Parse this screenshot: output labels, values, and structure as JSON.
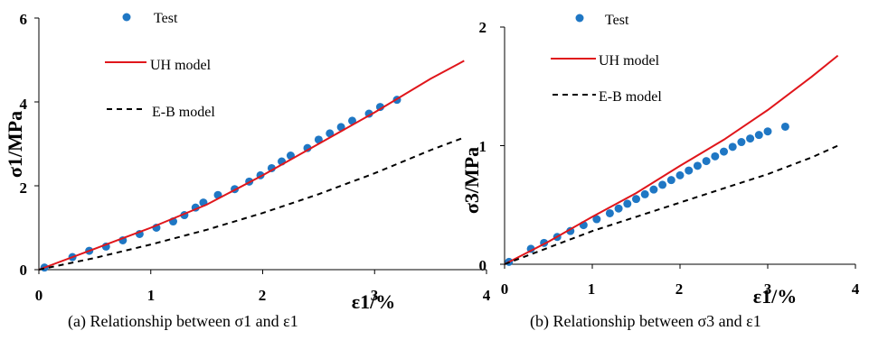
{
  "colors": {
    "test": "#1f77c4",
    "uh": "#e0161b",
    "eb": "#000000",
    "axis": "#000000"
  },
  "chart_data": [
    {
      "type": "scatter",
      "xlabel": "ε1/%",
      "ylabel": "σ1/MPa",
      "xlim": [
        0,
        4
      ],
      "ylim": [
        0,
        6
      ],
      "xticks": [
        "0",
        "1",
        "2",
        "3",
        "4"
      ],
      "yticks": [
        "0",
        "2",
        "4",
        "6"
      ],
      "legend": {
        "placement": "top-left",
        "entries": [
          "Test",
          "UH model",
          "E-B model"
        ]
      },
      "caption": "(a) Relationship between σ1 and ε1",
      "series": [
        {
          "name": "Test",
          "style": "points",
          "x": [
            0.05,
            0.3,
            0.45,
            0.6,
            0.75,
            0.9,
            1.05,
            1.2,
            1.3,
            1.4,
            1.47,
            1.6,
            1.75,
            1.88,
            1.98,
            2.08,
            2.17,
            2.25,
            2.4,
            2.5,
            2.6,
            2.7,
            2.8,
            2.95,
            3.05,
            3.2
          ],
          "y": [
            0.05,
            0.3,
            0.45,
            0.55,
            0.7,
            0.85,
            1.0,
            1.15,
            1.3,
            1.48,
            1.6,
            1.78,
            1.92,
            2.1,
            2.25,
            2.42,
            2.58,
            2.72,
            2.9,
            3.1,
            3.25,
            3.4,
            3.55,
            3.72,
            3.88,
            4.05
          ]
        },
        {
          "name": "UH model",
          "style": "solid",
          "x": [
            0,
            0.5,
            1.0,
            1.5,
            2.0,
            2.5,
            3.0,
            3.5,
            3.8
          ],
          "y": [
            0,
            0.5,
            1.0,
            1.55,
            2.25,
            3.0,
            3.75,
            4.55,
            4.98
          ]
        },
        {
          "name": "E-B model",
          "style": "dashed",
          "x": [
            0,
            0.5,
            1.0,
            1.5,
            2.0,
            2.5,
            3.0,
            3.5,
            3.8
          ],
          "y": [
            0,
            0.28,
            0.6,
            0.95,
            1.35,
            1.8,
            2.3,
            2.85,
            3.15
          ]
        }
      ]
    },
    {
      "type": "scatter",
      "xlabel": "ε1/%",
      "ylabel": "σ3/MPa",
      "xlim": [
        0,
        4
      ],
      "ylim": [
        0,
        2
      ],
      "xticks": [
        "0",
        "1",
        "2",
        "3",
        "4"
      ],
      "yticks": [
        "0",
        "1",
        "2"
      ],
      "legend": {
        "placement": "top-left",
        "entries": [
          "Test",
          "UH model",
          "E-B model"
        ]
      },
      "caption": "(b) Relationship between σ3 and ε1",
      "series": [
        {
          "name": "Test",
          "style": "points",
          "x": [
            0.05,
            0.3,
            0.45,
            0.6,
            0.75,
            0.9,
            1.05,
            1.2,
            1.3,
            1.4,
            1.5,
            1.6,
            1.7,
            1.8,
            1.9,
            2.0,
            2.1,
            2.2,
            2.3,
            2.4,
            2.5,
            2.6,
            2.7,
            2.8,
            2.9,
            3.0,
            3.2
          ],
          "y": [
            0.02,
            0.13,
            0.18,
            0.23,
            0.28,
            0.33,
            0.38,
            0.43,
            0.47,
            0.51,
            0.55,
            0.59,
            0.63,
            0.67,
            0.71,
            0.75,
            0.79,
            0.83,
            0.87,
            0.91,
            0.95,
            0.99,
            1.03,
            1.06,
            1.09,
            1.12,
            1.16
          ]
        },
        {
          "name": "UH model",
          "style": "solid",
          "x": [
            0,
            0.5,
            1.0,
            1.5,
            2.0,
            2.5,
            3.0,
            3.5,
            3.8
          ],
          "y": [
            0,
            0.19,
            0.4,
            0.6,
            0.83,
            1.05,
            1.3,
            1.58,
            1.76
          ]
        },
        {
          "name": "E-B model",
          "style": "dashed",
          "x": [
            0,
            0.5,
            1.0,
            1.5,
            2.0,
            2.5,
            3.0,
            3.5,
            3.8
          ],
          "y": [
            0,
            0.14,
            0.28,
            0.4,
            0.52,
            0.64,
            0.76,
            0.9,
            1.0
          ]
        }
      ]
    }
  ]
}
